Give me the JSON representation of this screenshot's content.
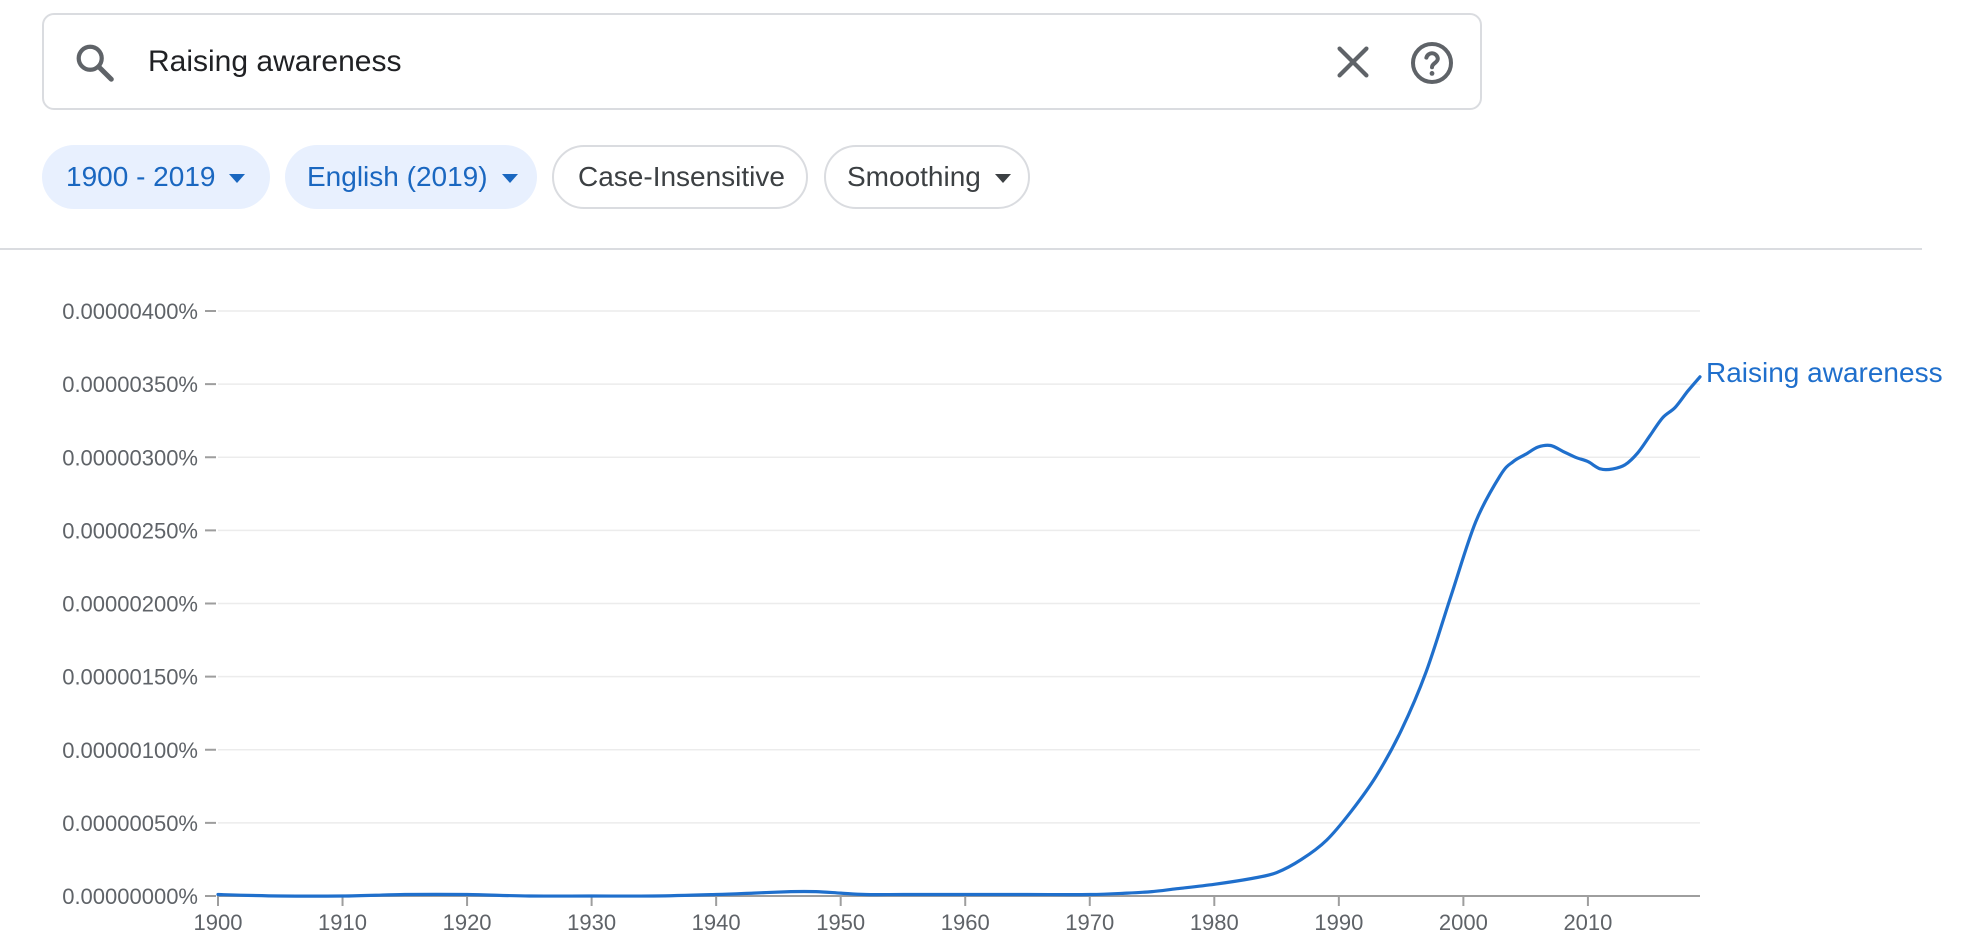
{
  "search": {
    "query": "Raising awareness",
    "search_icon": "search-icon",
    "clear_icon": "close-icon",
    "help_icon": "help-circle-icon"
  },
  "filters": {
    "year_range": "1900 - 2019",
    "corpus": "English (2019)",
    "case_option": "Case-Insensitive",
    "smoothing": "Smoothing"
  },
  "colors": {
    "accent": "#1a67c0",
    "line": "#1f6fcc",
    "chip_active_bg": "#e8f0fe",
    "grid": "#ececec",
    "axis": "#9e9e9e",
    "tick_text": "#5f6368"
  },
  "chart_data": {
    "type": "line",
    "title": "",
    "xlabel": "",
    "ylabel": "",
    "xlim": [
      1900,
      2019
    ],
    "ylim": [
      0,
      4e-06
    ],
    "grid": true,
    "x_ticks": [
      "1900",
      "1910",
      "1920",
      "1930",
      "1940",
      "1950",
      "1960",
      "1970",
      "1980",
      "1990",
      "2000",
      "2010"
    ],
    "y_ticks": [
      "0.00000000%",
      "0.00000050%",
      "0.00000100%",
      "0.00000150%",
      "0.00000200%",
      "0.00000250%",
      "0.00000300%",
      "0.00000350%",
      "0.00000400%"
    ],
    "series": [
      {
        "name": "Raising awareness",
        "x": [
          1900,
          1905,
          1910,
          1915,
          1920,
          1925,
          1930,
          1935,
          1940,
          1943,
          1946,
          1948,
          1950,
          1952,
          1955,
          1960,
          1965,
          1970,
          1973,
          1975,
          1977,
          1980,
          1983,
          1985,
          1987,
          1989,
          1991,
          1993,
          1995,
          1997,
          1999,
          2001,
          2003,
          2004,
          2005,
          2006,
          2007,
          2008,
          2009,
          2010,
          2011,
          2012,
          2013,
          2014,
          2015,
          2016,
          2017,
          2018,
          2019
        ],
        "y": [
          1e-08,
          0.0,
          0.0,
          1e-08,
          1e-08,
          0.0,
          0.0,
          0.0,
          1e-08,
          2e-08,
          3e-08,
          3e-08,
          2e-08,
          1e-08,
          1e-08,
          1e-08,
          1e-08,
          1e-08,
          2e-08,
          3e-08,
          5e-08,
          8e-08,
          1.2e-07,
          1.6e-07,
          2.5e-07,
          3.8e-07,
          5.8e-07,
          8.2e-07,
          1.13e-06,
          1.53e-06,
          2.05e-06,
          2.56e-06,
          2.88e-06,
          2.97e-06,
          3.02e-06,
          3.07e-06,
          3.08e-06,
          3.04e-06,
          3e-06,
          2.97e-06,
          2.92e-06,
          2.92e-06,
          2.95e-06,
          3.03e-06,
          3.15e-06,
          3.27e-06,
          3.34e-06,
          3.45e-06,
          3.55e-06
        ]
      }
    ]
  }
}
